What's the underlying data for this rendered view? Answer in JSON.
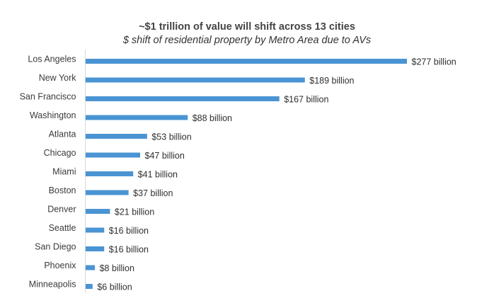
{
  "chart_data": {
    "type": "bar",
    "orientation": "horizontal",
    "title": "~$1 trillion of value will shift across 13 cities",
    "subtitle": "$ shift of residential property by Metro Area due to AVs",
    "xlabel": "",
    "ylabel": "",
    "unit": "billion USD",
    "categories": [
      "Los Angeles",
      "New York",
      "San Francisco",
      "Washington",
      "Atlanta",
      "Chicago",
      "Miami",
      "Boston",
      "Denver",
      "Seattle",
      "San Diego",
      "Phoenix",
      "Minneapolis"
    ],
    "values": [
      277,
      189,
      167,
      88,
      53,
      47,
      41,
      37,
      21,
      16,
      16,
      8,
      6
    ],
    "data_labels": [
      "$277 billion",
      "$189 billion",
      "$167 billion",
      "$88 billion",
      "$53 billion",
      "$47 billion",
      "$41 billion",
      "$37 billion",
      "$21 billion",
      "$16 billion",
      "$16 billion",
      "$8 billion",
      "$6 billion"
    ],
    "xlim": [
      0,
      280
    ],
    "grid": false,
    "legend": "none",
    "bar_color": "#4A94D3",
    "axis_color": "#d9d9d9"
  }
}
